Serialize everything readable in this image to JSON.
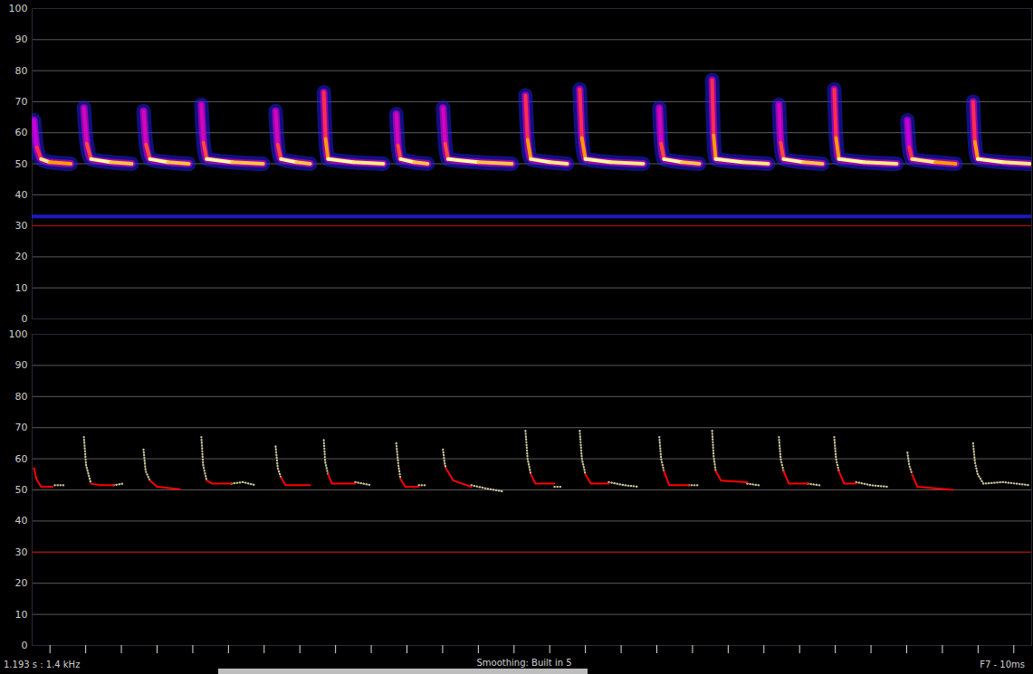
{
  "chart_data": [
    {
      "type": "spectrogram",
      "xlim": [
        0,
        280
      ],
      "ylim": [
        0,
        100
      ],
      "yticks": [
        0,
        10,
        20,
        30,
        40,
        50,
        60,
        70,
        80,
        90,
        100
      ],
      "grid": true,
      "tick_labels": "y",
      "zlim": [
        0,
        100
      ],
      "threshold": 30,
      "noise_band": 33,
      "calls": [
        {
          "x": [
            0.5,
            1.3,
            2.5,
            5,
            10.8
          ],
          "y": [
            64,
            55.3,
            51.5,
            50.5,
            50
          ],
          "intensity": [
            30,
            55,
            95,
            75,
            40
          ]
        },
        {
          "x": [
            14.5,
            15.3,
            16.5,
            22,
            27.9
          ],
          "y": [
            68,
            56.5,
            51.5,
            50.5,
            50
          ],
          "intensity": [
            35,
            60,
            100,
            85,
            45
          ]
        },
        {
          "x": [
            31.2,
            31.9,
            33,
            38,
            43.9
          ],
          "y": [
            67,
            56.2,
            51.5,
            50.5,
            50
          ],
          "intensity": [
            35,
            60,
            100,
            85,
            45
          ]
        },
        {
          "x": [
            47.4,
            48,
            48.9,
            56,
            64.7
          ],
          "y": [
            69,
            56.8,
            51.5,
            50.5,
            50
          ],
          "intensity": [
            35,
            60,
            100,
            85,
            45
          ]
        },
        {
          "x": [
            68.2,
            68.8,
            69.7,
            74,
            77.9
          ],
          "y": [
            67,
            56.2,
            51.5,
            50.5,
            50
          ],
          "intensity": [
            35,
            60,
            100,
            85,
            45
          ]
        },
        {
          "x": [
            81.7,
            82.2,
            82.9,
            90,
            98.4
          ],
          "y": [
            73,
            58,
            51.5,
            50.5,
            50
          ],
          "intensity": [
            55,
            75,
            100,
            95,
            65
          ]
        },
        {
          "x": [
            102,
            102.5,
            103.2,
            107,
            110.8
          ],
          "y": [
            66,
            55.9,
            51.5,
            50.5,
            50
          ],
          "intensity": [
            35,
            60,
            100,
            85,
            45
          ]
        },
        {
          "x": [
            115.1,
            115.7,
            116.5,
            125,
            134.4
          ],
          "y": [
            68,
            56.5,
            51.5,
            50.5,
            50
          ],
          "intensity": [
            35,
            60,
            100,
            85,
            45
          ]
        },
        {
          "x": [
            138.2,
            138.8,
            139.7,
            145,
            149.9
          ],
          "y": [
            72,
            57.7,
            51.5,
            50.5,
            50
          ],
          "intensity": [
            55,
            75,
            100,
            95,
            65
          ]
        },
        {
          "x": [
            153.4,
            154,
            155,
            162,
            171.2
          ],
          "y": [
            74,
            58.3,
            51.5,
            50.5,
            50
          ],
          "intensity": [
            55,
            75,
            100,
            95,
            65
          ]
        },
        {
          "x": [
            175.7,
            176.2,
            177,
            182,
            186.9
          ],
          "y": [
            68,
            56.5,
            51.5,
            50.5,
            50
          ],
          "intensity": [
            35,
            60,
            100,
            85,
            45
          ]
        },
        {
          "x": [
            190.5,
            190.9,
            191.5,
            199,
            206.2
          ],
          "y": [
            77,
            59.2,
            51.5,
            50.5,
            50
          ],
          "intensity": [
            55,
            75,
            100,
            95,
            65
          ]
        },
        {
          "x": [
            209.2,
            209.7,
            210.5,
            216,
            221.4
          ],
          "y": [
            69,
            56.8,
            51.5,
            50.5,
            50
          ],
          "intensity": [
            35,
            60,
            100,
            85,
            45
          ]
        },
        {
          "x": [
            224.7,
            225.2,
            226,
            233,
            242.2
          ],
          "y": [
            74,
            58.3,
            51.5,
            50.5,
            50
          ],
          "intensity": [
            55,
            75,
            100,
            95,
            65
          ]
        },
        {
          "x": [
            245.2,
            245.7,
            246.5,
            253,
            258.7
          ],
          "y": [
            64,
            55.3,
            51.5,
            50.5,
            50
          ],
          "intensity": [
            30,
            55,
            95,
            75,
            40
          ]
        },
        {
          "x": [
            263.6,
            264.1,
            264.9,
            272,
            279.5
          ],
          "y": [
            70,
            57.1,
            51.5,
            50.5,
            50
          ],
          "intensity": [
            55,
            75,
            100,
            95,
            65
          ]
        }
      ]
    },
    {
      "type": "line",
      "xlim": [
        0,
        280
      ],
      "xticks": [
        5,
        15,
        25,
        35,
        45,
        55,
        65,
        75,
        85,
        95,
        105,
        115,
        125,
        135,
        145,
        155,
        165,
        175,
        185,
        195,
        205,
        215,
        225,
        235,
        245,
        255,
        265,
        275
      ],
      "ylim": [
        0,
        100
      ],
      "yticks": [
        0,
        10,
        20,
        30,
        40,
        50,
        60,
        70,
        80,
        90,
        100
      ],
      "grid": true,
      "tick_labels": "y",
      "threshold": 30,
      "annotations": [
        "1.193 s : 1.4 kHz",
        "Smoothing: Built in 5",
        "F7 - 10ms"
      ],
      "series": [
        {
          "color": "#c9c59b",
          "line_style": "dotted",
          "x": [
            6.3,
            8.9,
            8.9,
            14.5,
            15.1,
            16.5,
            16.5,
            22.8,
            25.4,
            25.4,
            31.2,
            31.8,
            33,
            33,
            47.4,
            47.9,
            48.9,
            48.9,
            55.8,
            59,
            62.6,
            62.6,
            68.2,
            68.8,
            69.7,
            69.7,
            81.7,
            82.1,
            82.9,
            82.9,
            90.5,
            95.1,
            95.1,
            102,
            102.6,
            103.2,
            103.2,
            108.3,
            110.3,
            110.3,
            115.1,
            115.5,
            115.9,
            115.9,
            123,
            127,
            131.9,
            131.9,
            138.2,
            138.8,
            139.7,
            139.7,
            146.3,
            148.4,
            148.4,
            153.4,
            154,
            155,
            155,
            161.5,
            166,
            169.9,
            169.9,
            175.7,
            176.2,
            177,
            177,
            183.9,
            186.9,
            186.9,
            190.5,
            190.9,
            191.5,
            191.5,
            200.3,
            203.6,
            203.6,
            209.2,
            209.7,
            210.5,
            210.5,
            217.3,
            220.6,
            220.6,
            224.7,
            225.2,
            226,
            226,
            230.8,
            235,
            239.7,
            239.7,
            245.2,
            245.7,
            246.5,
            246.5,
            263.6,
            264.1,
            264.9,
            266.5,
            272,
            279.5
          ],
          "values": [
            51.5,
            51.5,
            null,
            67,
            58,
            52,
            null,
            51.5,
            52,
            null,
            63,
            56,
            53,
            null,
            67,
            58,
            53,
            null,
            52,
            52.5,
            51.5,
            null,
            64,
            57,
            54,
            null,
            66,
            59,
            55,
            null,
            52.5,
            51.5,
            null,
            65,
            58,
            53.5,
            null,
            51.5,
            51.5,
            null,
            63,
            59,
            57,
            null,
            51.5,
            50.5,
            49.5,
            null,
            69,
            60,
            55,
            null,
            51,
            51,
            null,
            69,
            60,
            55,
            null,
            52.5,
            51.5,
            51,
            null,
            67,
            60,
            56,
            null,
            51.5,
            51.5,
            null,
            69,
            61,
            56,
            null,
            52,
            51.5,
            null,
            67,
            60,
            56,
            null,
            52,
            51.5,
            null,
            67,
            60,
            56,
            null,
            52.5,
            51.5,
            51,
            null,
            62,
            58,
            55,
            null,
            65,
            59,
            55,
            52,
            52.5,
            51.5
          ]
        },
        {
          "color": "#ff0000",
          "line_style": "solid",
          "x": [
            0.5,
            1.2,
            2.5,
            5.8,
            5.8,
            16.5,
            19,
            22.8,
            22.8,
            33,
            35,
            41.3,
            41.3,
            48.9,
            50.5,
            55.8,
            55.8,
            69.7,
            71,
            77.9,
            77.9,
            82.9,
            84,
            90.5,
            90.5,
            103.2,
            104.5,
            108.3,
            108.3,
            115.9,
            118,
            123,
            123,
            139.7,
            141,
            146.3,
            146.3,
            155,
            156.5,
            161.5,
            161.5,
            177,
            178.5,
            183.9,
            183.9,
            191.5,
            193,
            200.3,
            200.3,
            210.5,
            212,
            217.3,
            217.3,
            226,
            227.5,
            230.8,
            230.8,
            246.5,
            248,
            257.9
          ],
          "values": [
            57,
            53.5,
            51,
            51,
            null,
            52,
            51.5,
            51.5,
            null,
            53,
            51,
            50.2,
            null,
            53,
            52,
            52,
            null,
            54,
            51.5,
            51.5,
            null,
            55,
            52,
            52,
            null,
            53.5,
            51,
            51,
            null,
            57,
            53,
            51,
            null,
            55,
            52,
            52,
            null,
            55,
            52,
            52,
            null,
            56,
            51.5,
            51.5,
            null,
            56,
            53,
            52.5,
            null,
            56,
            52,
            52,
            null,
            56,
            52,
            52,
            null,
            55,
            51,
            50
          ]
        }
      ]
    }
  ]
}
